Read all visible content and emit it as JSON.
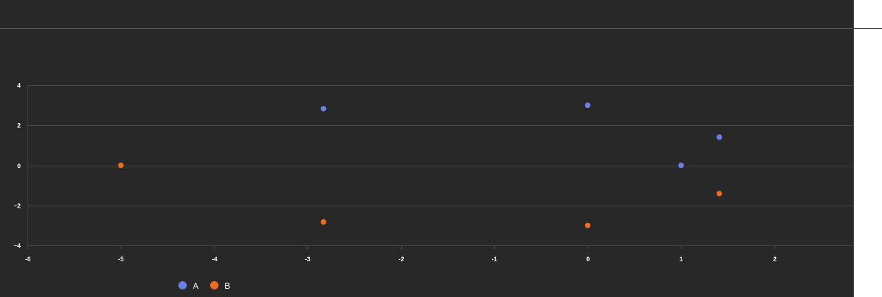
{
  "chart_data": {
    "type": "scatter",
    "xlim": [
      -6,
      2.85
    ],
    "ylim": [
      -4,
      4
    ],
    "x_ticks": [
      -6,
      -5,
      -4,
      -3,
      -2,
      -1,
      0,
      1,
      2
    ],
    "y_ticks": [
      -4,
      -2,
      0,
      2,
      4
    ],
    "x_tick_labels": [
      "-6",
      "-5",
      "-4",
      "-3",
      "-2",
      "-1",
      "0",
      "1",
      "2"
    ],
    "y_tick_labels": [
      "−4",
      "−2",
      "0",
      "2",
      "4"
    ],
    "grid": "horizontal",
    "legend_position": "bottom-left",
    "series": [
      {
        "name": "A",
        "color": "#6b7fe8",
        "points": [
          [
            -2.83,
            2.83
          ],
          [
            0,
            3
          ],
          [
            1,
            0
          ],
          [
            1.41,
            1.41
          ]
        ]
      },
      {
        "name": "B",
        "color": "#f26a1b",
        "points": [
          [
            -5,
            0
          ],
          [
            -2.83,
            -2.83
          ],
          [
            0,
            -3
          ],
          [
            1.41,
            -1.41
          ]
        ]
      }
    ]
  }
}
